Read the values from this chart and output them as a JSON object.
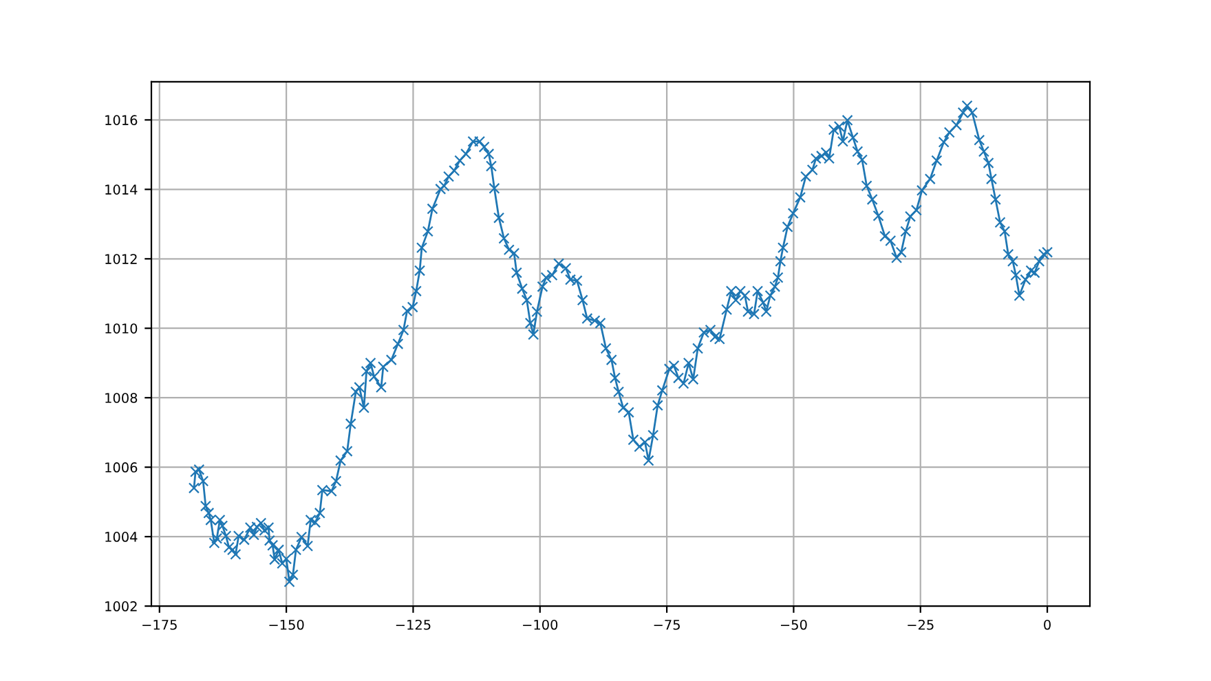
{
  "chart_data": {
    "type": "line",
    "marker": "cross",
    "line_style": "solid",
    "grid": true,
    "xlim": [
      -176.6,
      8.4
    ],
    "xticks": [
      {
        "value": -175,
        "label": "−175"
      },
      {
        "value": -150,
        "label": "−150"
      },
      {
        "value": -125,
        "label": "−125"
      },
      {
        "value": -100,
        "label": "−100"
      },
      {
        "value": -75,
        "label": "−75"
      },
      {
        "value": -50,
        "label": "−50"
      },
      {
        "value": -25,
        "label": "−25"
      },
      0
    ],
    "ylim": [
      1002,
      1017.1
    ],
    "yticks": [
      1002,
      1004,
      1006,
      1008,
      1010,
      1012,
      1014,
      1016
    ],
    "series": [
      {
        "color": "#1f77b4",
        "x": [
          -168.2,
          -167.9,
          -167.2,
          -166.4,
          -165.9,
          -165.3,
          -164.9,
          -164.2,
          -163.7,
          -163.1,
          -162.6,
          -161.9,
          -161.3,
          -160.6,
          -160.0,
          -159.4,
          -158.3,
          -157.1,
          -156.4,
          -155.8,
          -155.0,
          -154.3,
          -153.5,
          -153.3,
          -152.7,
          -152.3,
          -151.5,
          -150.8,
          -150.0,
          -149.4,
          -148.7,
          -148.1,
          -147.0,
          -145.8,
          -145.2,
          -144.3,
          -143.4,
          -142.9,
          -141.1,
          -140.2,
          -139.3,
          -138.0,
          -137.3,
          -136.3,
          -135.6,
          -134.7,
          -134.2,
          -133.4,
          -132.7,
          -131.3,
          -130.9,
          -129.3,
          -128.0,
          -126.9,
          -126.2,
          -125.1,
          -124.4,
          -123.7,
          -123.3,
          -122.1,
          -121.2,
          -119.6,
          -118.9,
          -118.0,
          -116.9,
          -115.8,
          -114.6,
          -113.2,
          -111.9,
          -111.0,
          -110.1,
          -109.6,
          -109.0,
          -108.1,
          -107.1,
          -106.1,
          -105.1,
          -104.6,
          -103.5,
          -102.6,
          -101.9,
          -101.3,
          -100.6,
          -99.5,
          -98.8,
          -97.6,
          -96.3,
          -94.9,
          -94.0,
          -92.7,
          -91.6,
          -90.7,
          -89.2,
          -88.1,
          -87.0,
          -85.9,
          -85.2,
          -84.5,
          -83.6,
          -82.5,
          -81.6,
          -80.4,
          -79.3,
          -78.6,
          -77.7,
          -76.8,
          -75.9,
          -74.5,
          -73.6,
          -72.7,
          -71.7,
          -70.7,
          -69.8,
          -68.9,
          -67.7,
          -66.4,
          -65.5,
          -64.6,
          -63.2,
          -62.3,
          -61.4,
          -60.5,
          -59.6,
          -59.0,
          -57.8,
          -57.1,
          -56.0,
          -55.4,
          -54.6,
          -53.7,
          -53.1,
          -52.6,
          -52.1,
          -51.2,
          -50.1,
          -48.7,
          -47.6,
          -46.3,
          -45.6,
          -44.5,
          -43.6,
          -43.0,
          -42.1,
          -41.0,
          -40.3,
          -39.4,
          -38.3,
          -37.4,
          -36.5,
          -35.6,
          -34.5,
          -33.3,
          -32.0,
          -30.9,
          -29.7,
          -28.8,
          -27.9,
          -27.0,
          -25.8,
          -24.7,
          -23.1,
          -21.8,
          -20.4,
          -19.3,
          -17.9,
          -16.6,
          -15.8,
          -14.8,
          -13.4,
          -12.5,
          -11.6,
          -11.0,
          -10.2,
          -9.3,
          -8.4,
          -7.7,
          -6.8,
          -6.2,
          -5.5,
          -4.3,
          -3.2,
          -2.5,
          -1.6,
          -0.7,
          0
        ],
        "values": [
          1005.4,
          1005.87,
          1005.93,
          1005.6,
          1004.88,
          1004.68,
          1004.48,
          1003.82,
          1003.95,
          1004.48,
          1004.31,
          1004.02,
          1003.69,
          1003.62,
          1003.49,
          1004.02,
          1003.91,
          1004.26,
          1004.05,
          1004.28,
          1004.39,
          1004.18,
          1004.26,
          1003.89,
          1003.75,
          1003.34,
          1003.62,
          1003.23,
          1003.36,
          1002.7,
          1002.9,
          1003.62,
          1003.99,
          1003.73,
          1004.48,
          1004.41,
          1004.68,
          1005.34,
          1005.31,
          1005.6,
          1006.19,
          1006.46,
          1007.25,
          1008.17,
          1008.3,
          1007.71,
          1008.76,
          1009.0,
          1008.61,
          1008.3,
          1008.89,
          1009.09,
          1009.55,
          1009.95,
          1010.5,
          1010.61,
          1011.07,
          1011.66,
          1012.32,
          1012.79,
          1013.44,
          1014.01,
          1014.1,
          1014.37,
          1014.54,
          1014.83,
          1015.02,
          1015.38,
          1015.38,
          1015.22,
          1015.02,
          1014.67,
          1014.03,
          1013.18,
          1012.59,
          1012.26,
          1012.16,
          1011.6,
          1011.14,
          1010.81,
          1010.15,
          1009.82,
          1010.48,
          1011.2,
          1011.46,
          1011.53,
          1011.86,
          1011.73,
          1011.4,
          1011.37,
          1010.81,
          1010.28,
          1010.22,
          1010.15,
          1009.42,
          1009.09,
          1008.57,
          1008.17,
          1007.71,
          1007.58,
          1006.79,
          1006.59,
          1006.72,
          1006.19,
          1006.92,
          1007.78,
          1008.21,
          1008.83,
          1008.92,
          1008.57,
          1008.41,
          1009.0,
          1008.53,
          1009.42,
          1009.88,
          1009.95,
          1009.75,
          1009.69,
          1010.54,
          1011.07,
          1010.81,
          1011.07,
          1010.94,
          1010.48,
          1010.41,
          1011.07,
          1010.74,
          1010.48,
          1010.94,
          1011.2,
          1011.46,
          1011.93,
          1012.32,
          1012.92,
          1013.31,
          1013.77,
          1014.37,
          1014.56,
          1014.89,
          1014.96,
          1015.06,
          1014.89,
          1015.72,
          1015.81,
          1015.38,
          1015.99,
          1015.49,
          1015.09,
          1014.85,
          1014.1,
          1013.71,
          1013.24,
          1012.65,
          1012.52,
          1012.03,
          1012.19,
          1012.79,
          1013.22,
          1013.4,
          1013.97,
          1014.3,
          1014.83,
          1015.36,
          1015.64,
          1015.85,
          1016.21,
          1016.41,
          1016.21,
          1015.42,
          1015.09,
          1014.76,
          1014.3,
          1013.71,
          1013.05,
          1012.79,
          1012.13,
          1011.93,
          1011.53,
          1010.94,
          1011.4,
          1011.66,
          1011.6,
          1011.93,
          1012.13,
          1012.19
        ]
      }
    ]
  }
}
